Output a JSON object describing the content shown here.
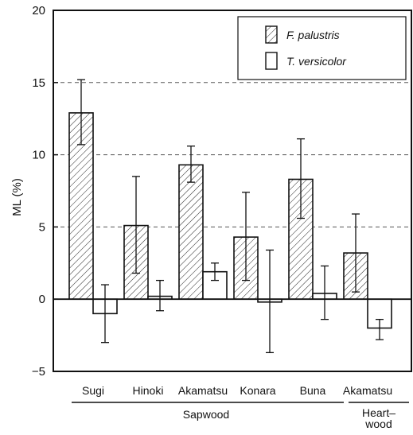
{
  "chart_data": {
    "type": "bar",
    "ylabel": "ML (%)",
    "ylim": [
      -5,
      20
    ],
    "yticks": [
      -5,
      0,
      5,
      10,
      15,
      20
    ],
    "ytick_labels": [
      "−5",
      "0",
      "5",
      "10",
      "15",
      "20"
    ],
    "grid_y_dashed": [
      5,
      10,
      15
    ],
    "categories": [
      "Sugi",
      "Hinoki",
      "Akamatsu",
      "Konara",
      "Buna",
      "Akamatsu"
    ],
    "groups": [
      {
        "label": "Sapwood",
        "categories": [
          "Sugi",
          "Hinoki",
          "Akamatsu",
          "Konara",
          "Buna"
        ]
      },
      {
        "label_lines": [
          "Heart–",
          "wood"
        ],
        "categories": [
          "Akamatsu"
        ]
      }
    ],
    "series": [
      {
        "name": "F. palustris",
        "fill": "hatched",
        "values": [
          12.9,
          5.1,
          9.3,
          4.3,
          8.3,
          3.2
        ],
        "err_low": [
          10.7,
          1.8,
          8.1,
          1.3,
          5.6,
          0.5
        ],
        "err_high": [
          15.2,
          8.5,
          10.6,
          7.4,
          11.1,
          5.9
        ]
      },
      {
        "name": "T. versicolor",
        "fill": "white",
        "values": [
          -1.0,
          0.2,
          1.9,
          -0.2,
          0.4,
          -2.0
        ],
        "err_low": [
          -3.0,
          -0.8,
          1.3,
          -3.7,
          -1.4,
          -2.8
        ],
        "err_high": [
          1.0,
          1.3,
          2.5,
          3.4,
          2.3,
          -1.4
        ]
      }
    ],
    "legend": {
      "position": "top-right",
      "entries": [
        "F. palustris",
        "T. versicolor"
      ]
    }
  }
}
